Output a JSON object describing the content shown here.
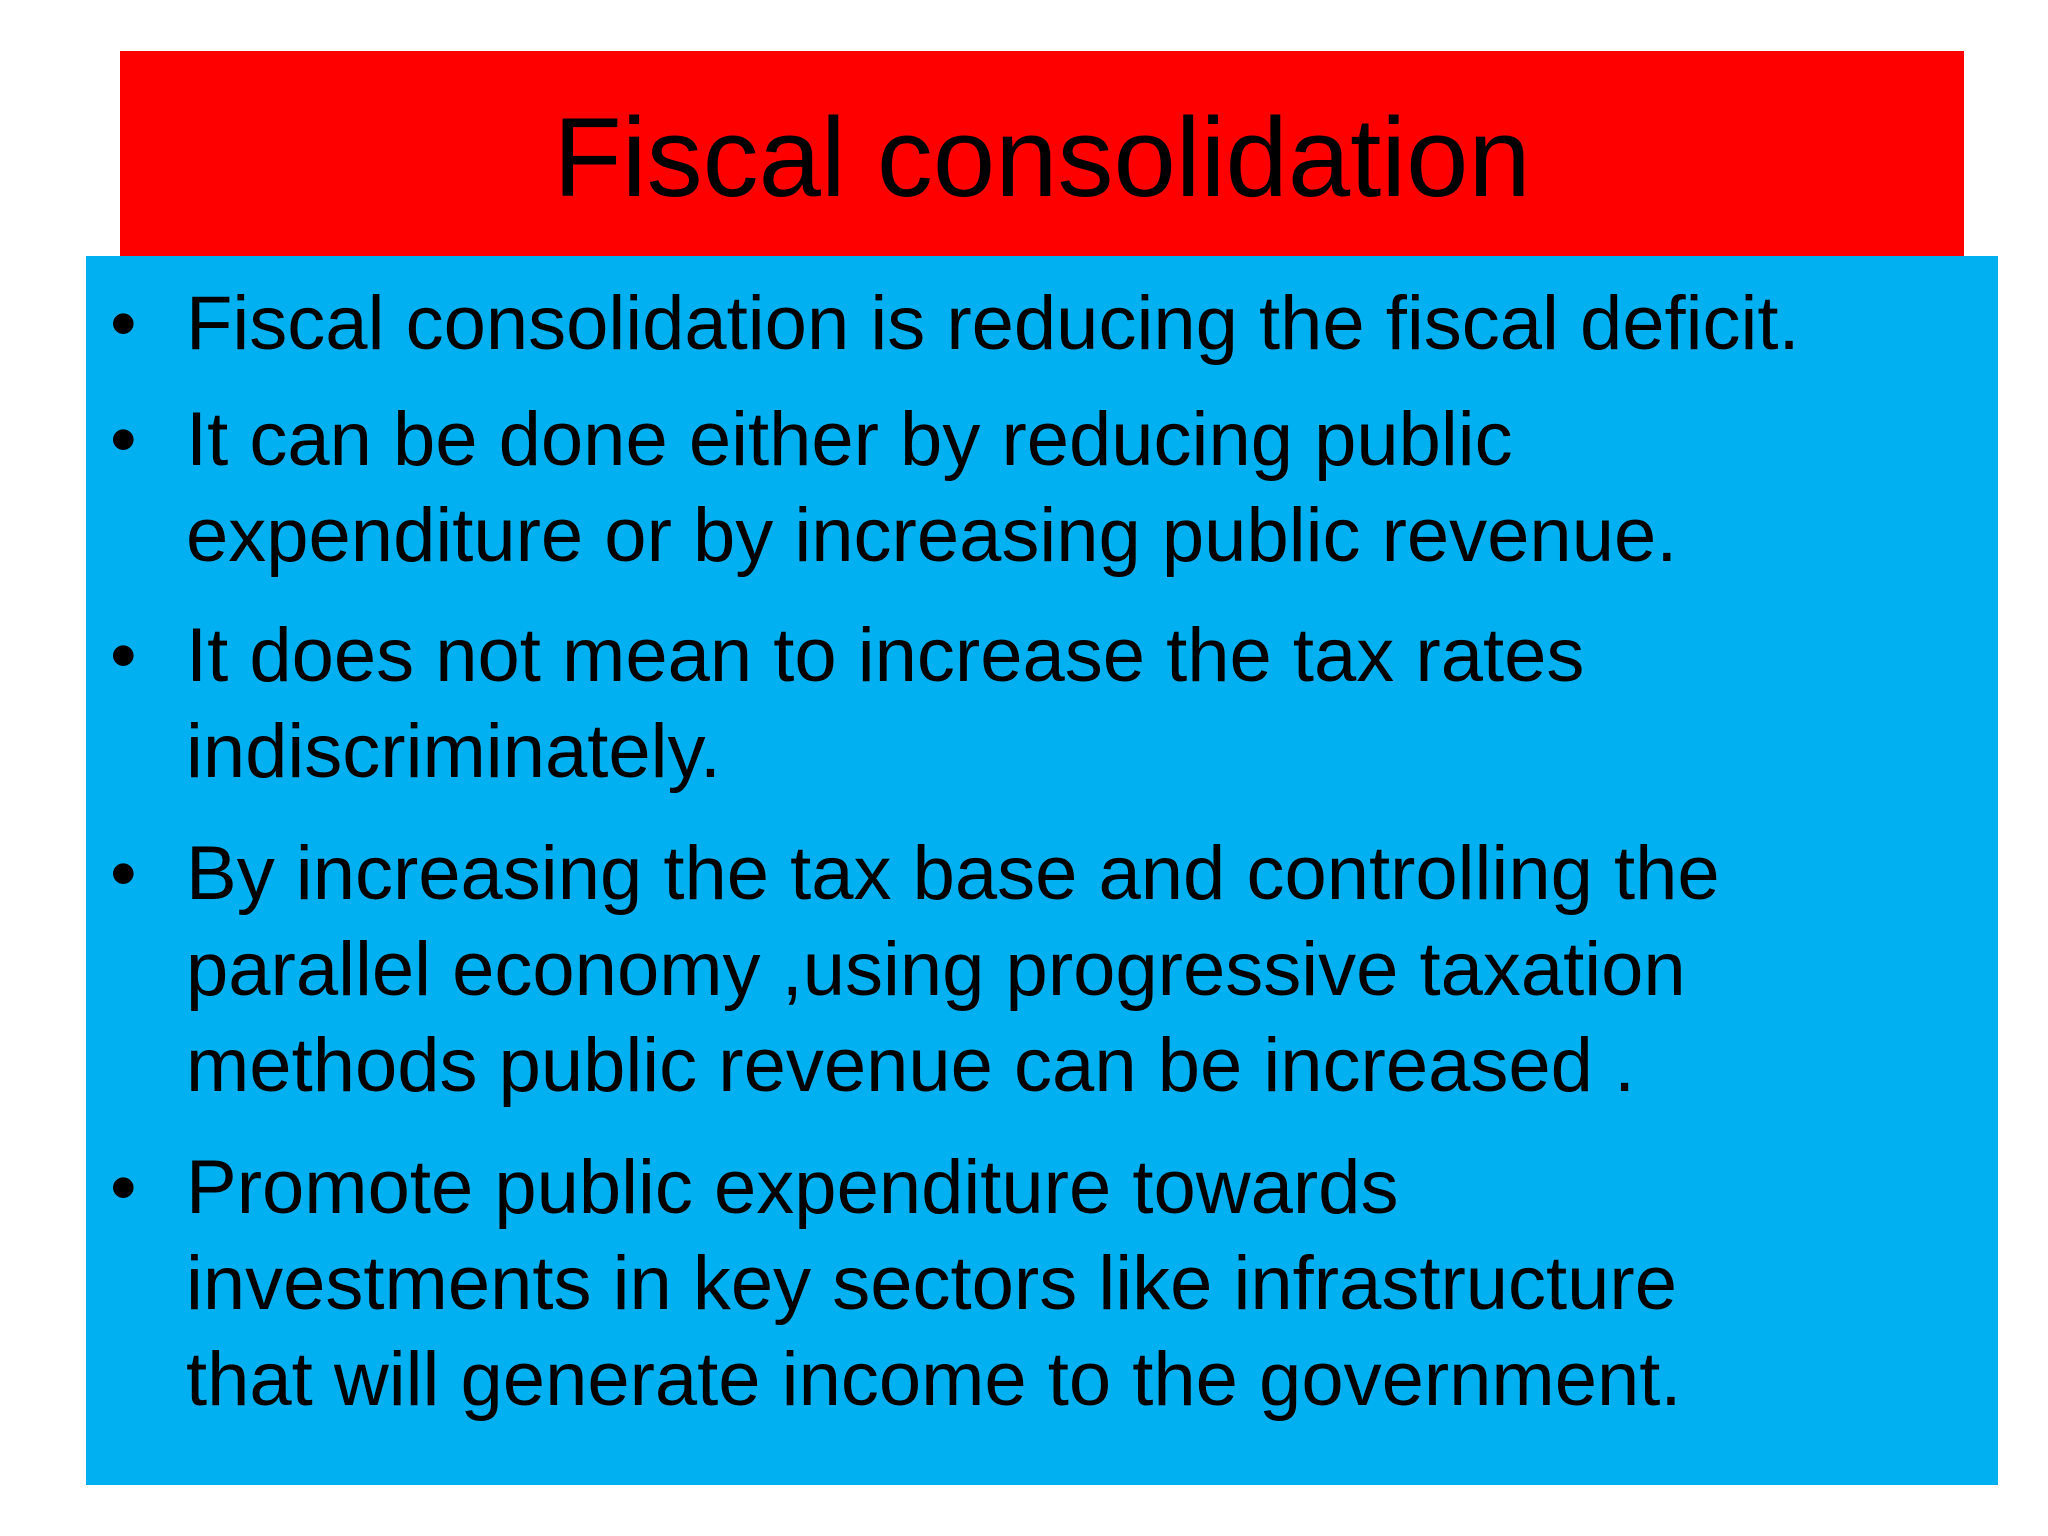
{
  "slide": {
    "title": "Fiscal consolidation",
    "bullet_symbol": "•",
    "colors": {
      "title_background": "#ff0000",
      "content_background": "#00b0f0",
      "text": "#000000"
    },
    "bullets": [
      "Fiscal consolidation is reducing the fiscal deficit.",
      "It can be done either by reducing public\nexpenditure or by increasing public revenue.",
      "It does not mean to increase the tax rates\nindiscriminately.",
      "By increasing the tax base and controlling the\nparallel economy ,using progressive taxation\nmethods public revenue can be increased .",
      "Promote public expenditure towards\ninvestments in key sectors like infrastructure\nthat will generate income to the government."
    ]
  }
}
